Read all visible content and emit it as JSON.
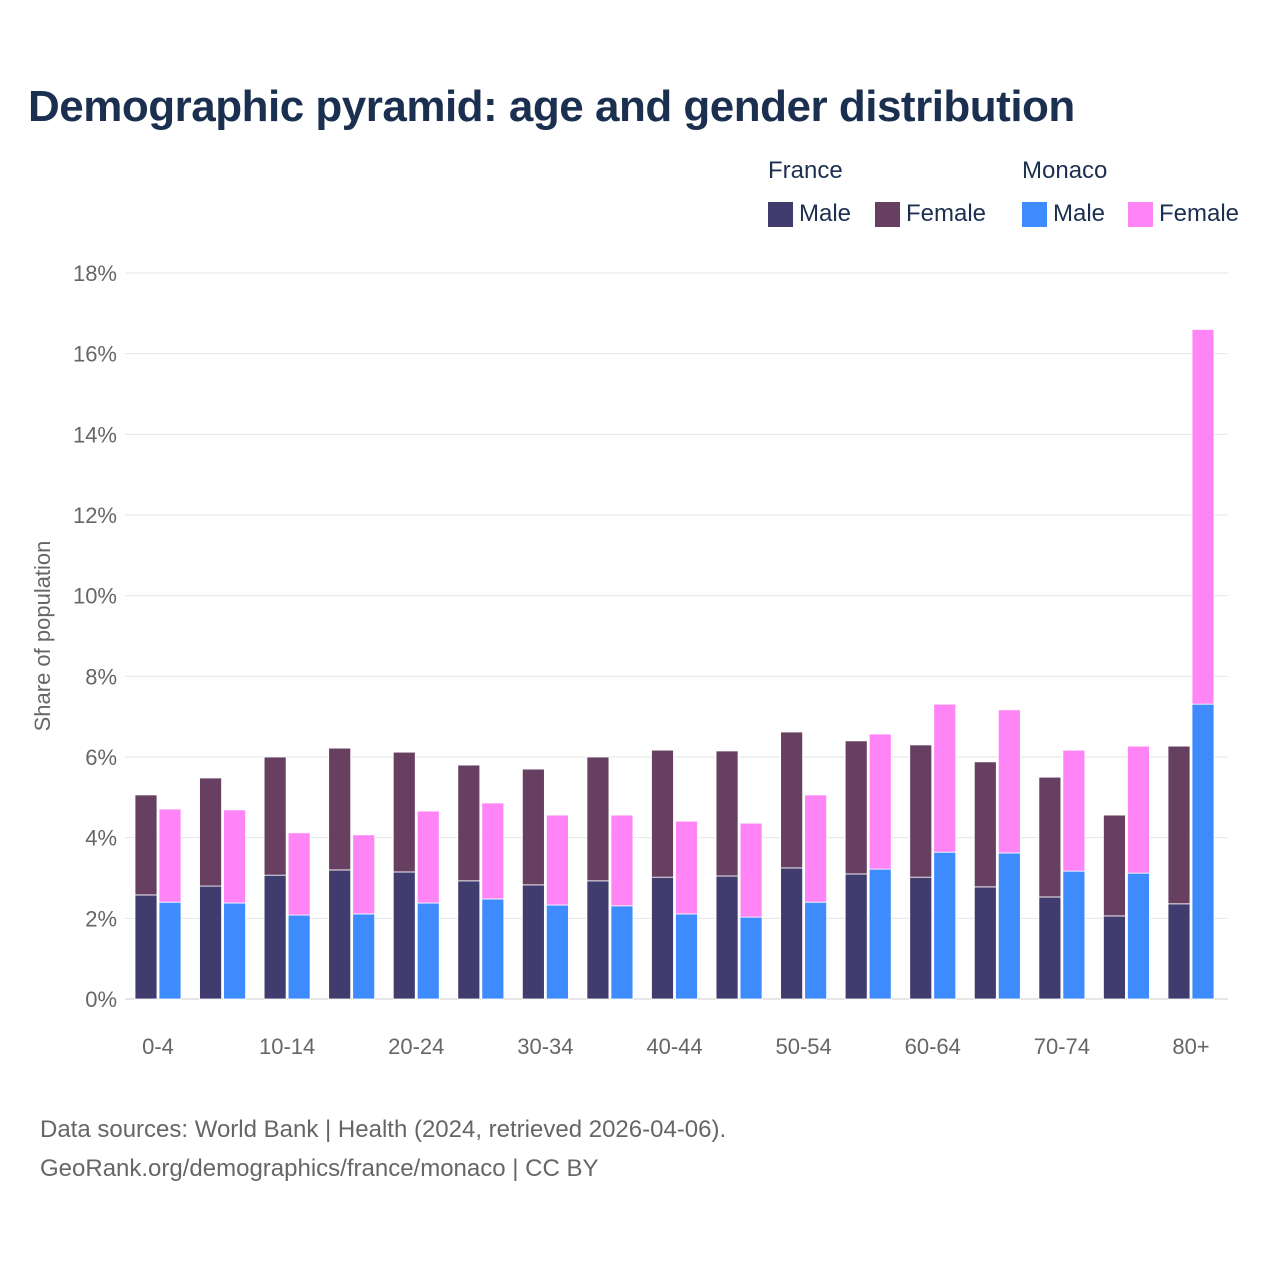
{
  "chart_data": {
    "type": "bar",
    "stacked": true,
    "title": "Demographic pyramid: age and gender distribution",
    "xlabel": "",
    "ylabel": "Share of population",
    "ylim": [
      0,
      18
    ],
    "yticks": [
      "0%",
      "2%",
      "4%",
      "6%",
      "8%",
      "10%",
      "12%",
      "14%",
      "16%",
      "18%"
    ],
    "ytick_values": [
      0,
      2,
      4,
      6,
      8,
      10,
      12,
      14,
      16,
      18
    ],
    "categories": [
      "0-4",
      "5-9",
      "10-14",
      "15-19",
      "20-24",
      "25-29",
      "30-34",
      "35-39",
      "40-44",
      "45-49",
      "50-54",
      "55-59",
      "60-64",
      "65-69",
      "70-74",
      "75-79",
      "80+"
    ],
    "xtick_labels": [
      "0-4",
      "",
      "10-14",
      "",
      "20-24",
      "",
      "30-34",
      "",
      "40-44",
      "",
      "50-54",
      "",
      "60-64",
      "",
      "70-74",
      "",
      "80+"
    ],
    "legend": {
      "groups": [
        {
          "name": "France",
          "items": [
            {
              "label": "Male",
              "color": "#403d6e"
            },
            {
              "label": "Female",
              "color": "#673f60"
            }
          ]
        },
        {
          "name": "Monaco",
          "items": [
            {
              "label": "Male",
              "color": "#3d8bfd"
            },
            {
              "label": "Female",
              "color": "#ff85f6"
            }
          ]
        }
      ],
      "placement": "top-right"
    },
    "series": [
      {
        "name": "France Male",
        "stack": "France",
        "color": "#403d6e",
        "values": [
          2.58,
          2.8,
          3.07,
          3.2,
          3.15,
          2.93,
          2.83,
          2.93,
          3.02,
          3.05,
          3.25,
          3.1,
          3.02,
          2.78,
          2.53,
          2.06,
          2.36
        ]
      },
      {
        "name": "France Female",
        "stack": "France",
        "color": "#673f60",
        "values": [
          2.48,
          2.68,
          2.93,
          3.02,
          2.97,
          2.87,
          2.87,
          3.07,
          3.15,
          3.1,
          3.37,
          3.3,
          3.28,
          3.1,
          2.97,
          2.5,
          3.91
        ]
      },
      {
        "name": "Monaco Male",
        "stack": "Monaco",
        "color": "#3d8bfd",
        "values": [
          2.4,
          2.38,
          2.08,
          2.11,
          2.38,
          2.48,
          2.33,
          2.31,
          2.11,
          2.03,
          2.4,
          3.22,
          3.64,
          3.62,
          3.17,
          3.12,
          7.31
        ]
      },
      {
        "name": "Monaco Female",
        "stack": "Monaco",
        "color": "#ff85f6",
        "values": [
          2.31,
          2.31,
          2.04,
          1.96,
          2.28,
          2.38,
          2.23,
          2.25,
          2.3,
          2.33,
          2.66,
          3.35,
          3.67,
          3.55,
          3.0,
          3.15,
          9.29
        ]
      }
    ]
  },
  "footer": {
    "line1": "Data sources: World Bank | Health (2024, retrieved 2026-04-06).",
    "line2": "GeoRank.org/demographics/france/monaco | CC BY"
  }
}
